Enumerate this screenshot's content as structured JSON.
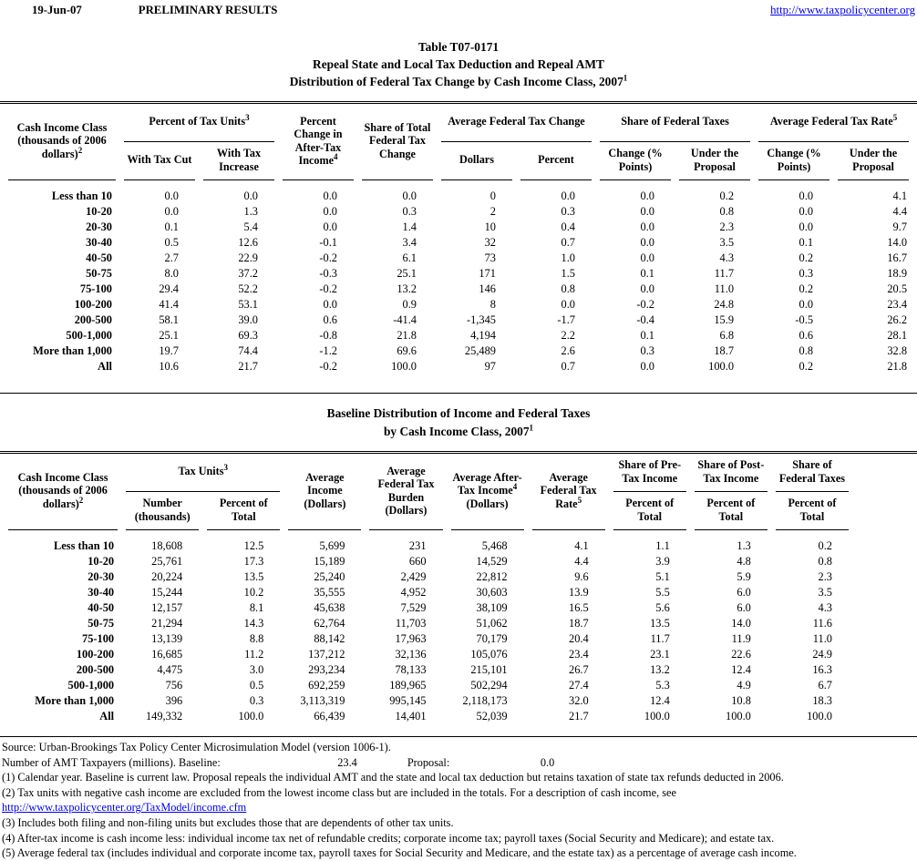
{
  "page_header": {
    "date": "19-Jun-07",
    "status": "PRELIMINARY RESULTS",
    "site_link": "http://www.taxpolicycenter.org"
  },
  "title": {
    "line1": "Table T07-0171",
    "line2": "Repeal State and Local Tax Deduction and Repeal AMT",
    "line3": "Distribution of Federal Tax Change by Cash Income Class, 2007^1"
  },
  "table1": {
    "header": {
      "label_column": "Cash Income Class (thousands of 2006 dollars)^2",
      "groups": [
        {
          "label": "Percent of Tax Units^3",
          "subs": [
            "With Tax Cut",
            "With Tax Increase"
          ]
        },
        {
          "label": "Percent Change in After-Tax Income^4"
        },
        {
          "label": "Share of Total Federal Tax Change"
        },
        {
          "label": "Average Federal Tax Change",
          "subs": [
            "Dollars",
            "Percent"
          ]
        },
        {
          "label": "Share of Federal Taxes",
          "subs": [
            "Change (% Points)",
            "Under the Proposal"
          ]
        },
        {
          "label": "Average Federal Tax Rate^5",
          "subs": [
            "Change (% Points)",
            "Under the Proposal"
          ]
        }
      ]
    },
    "rows": [
      [
        "Less than 10",
        "0.0",
        "0.0",
        "0.0",
        "0.0",
        "0",
        "0.0",
        "0.0",
        "0.2",
        "0.0",
        "4.1"
      ],
      [
        "10-20",
        "0.0",
        "1.3",
        "0.0",
        "0.3",
        "2",
        "0.3",
        "0.0",
        "0.8",
        "0.0",
        "4.4"
      ],
      [
        "20-30",
        "0.1",
        "5.4",
        "0.0",
        "1.4",
        "10",
        "0.4",
        "0.0",
        "2.3",
        "0.0",
        "9.7"
      ],
      [
        "30-40",
        "0.5",
        "12.6",
        "-0.1",
        "3.4",
        "32",
        "0.7",
        "0.0",
        "3.5",
        "0.1",
        "14.0"
      ],
      [
        "40-50",
        "2.7",
        "22.9",
        "-0.2",
        "6.1",
        "73",
        "1.0",
        "0.0",
        "4.3",
        "0.2",
        "16.7"
      ],
      [
        "50-75",
        "8.0",
        "37.2",
        "-0.3",
        "25.1",
        "171",
        "1.5",
        "0.1",
        "11.7",
        "0.3",
        "18.9"
      ],
      [
        "75-100",
        "29.4",
        "52.2",
        "-0.2",
        "13.2",
        "146",
        "0.8",
        "0.0",
        "11.0",
        "0.2",
        "20.5"
      ],
      [
        "100-200",
        "41.4",
        "53.1",
        "0.0",
        "0.9",
        "8",
        "0.0",
        "-0.2",
        "24.8",
        "0.0",
        "23.4"
      ],
      [
        "200-500",
        "58.1",
        "39.0",
        "0.6",
        "-41.4",
        "-1,345",
        "-1.7",
        "-0.4",
        "15.9",
        "-0.5",
        "26.2"
      ],
      [
        "500-1,000",
        "25.1",
        "69.3",
        "-0.8",
        "21.8",
        "4,194",
        "2.2",
        "0.1",
        "6.8",
        "0.6",
        "28.1"
      ],
      [
        "More than 1,000",
        "19.7",
        "74.4",
        "-1.2",
        "69.6",
        "25,489",
        "2.6",
        "0.3",
        "18.7",
        "0.8",
        "32.8"
      ],
      [
        "All",
        "10.6",
        "21.7",
        "-0.2",
        "100.0",
        "97",
        "0.7",
        "0.0",
        "100.0",
        "0.2",
        "21.8"
      ]
    ]
  },
  "title2": {
    "line1": "Baseline Distribution of Income and Federal Taxes",
    "line2": "by Cash Income Class, 2007^1"
  },
  "table2": {
    "header": {
      "label_column": "Cash Income Class (thousands of 2006 dollars)^2",
      "groups": [
        {
          "label": "Tax Units^3",
          "subs": [
            "Number (thousands)",
            "Percent of Total"
          ]
        },
        {
          "label": "Average Income (Dollars)"
        },
        {
          "label": "Average Federal Tax Burden (Dollars)"
        },
        {
          "label": "Average After-Tax Income^4 (Dollars)"
        },
        {
          "label": "Average Federal Tax Rate^5"
        },
        {
          "label": "Share of Pre-Tax Income",
          "subs": [
            "Percent of Total"
          ]
        },
        {
          "label": "Share of Post-Tax Income",
          "subs": [
            "Percent of Total"
          ]
        },
        {
          "label": "Share of Federal Taxes",
          "subs": [
            "Percent of Total"
          ]
        }
      ]
    },
    "rows": [
      [
        "Less than 10",
        "18,608",
        "12.5",
        "5,699",
        "231",
        "5,468",
        "4.1",
        "1.1",
        "1.3",
        "0.2"
      ],
      [
        "10-20",
        "25,761",
        "17.3",
        "15,189",
        "660",
        "14,529",
        "4.4",
        "3.9",
        "4.8",
        "0.8"
      ],
      [
        "20-30",
        "20,224",
        "13.5",
        "25,240",
        "2,429",
        "22,812",
        "9.6",
        "5.1",
        "5.9",
        "2.3"
      ],
      [
        "30-40",
        "15,244",
        "10.2",
        "35,555",
        "4,952",
        "30,603",
        "13.9",
        "5.5",
        "6.0",
        "3.5"
      ],
      [
        "40-50",
        "12,157",
        "8.1",
        "45,638",
        "7,529",
        "38,109",
        "16.5",
        "5.6",
        "6.0",
        "4.3"
      ],
      [
        "50-75",
        "21,294",
        "14.3",
        "62,764",
        "11,703",
        "51,062",
        "18.7",
        "13.5",
        "14.0",
        "11.6"
      ],
      [
        "75-100",
        "13,139",
        "8.8",
        "88,142",
        "17,963",
        "70,179",
        "20.4",
        "11.7",
        "11.9",
        "11.0"
      ],
      [
        "100-200",
        "16,685",
        "11.2",
        "137,212",
        "32,136",
        "105,076",
        "23.4",
        "23.1",
        "22.6",
        "24.9"
      ],
      [
        "200-500",
        "4,475",
        "3.0",
        "293,234",
        "78,133",
        "215,101",
        "26.7",
        "13.2",
        "12.4",
        "16.3"
      ],
      [
        "500-1,000",
        "756",
        "0.5",
        "692,259",
        "189,965",
        "502,294",
        "27.4",
        "5.3",
        "4.9",
        "6.7"
      ],
      [
        "More than 1,000",
        "396",
        "0.3",
        "3,113,319",
        "995,145",
        "2,118,173",
        "32.0",
        "12.4",
        "10.8",
        "18.3"
      ],
      [
        "All",
        "149,332",
        "100.0",
        "66,439",
        "14,401",
        "52,039",
        "21.7",
        "100.0",
        "100.0",
        "100.0"
      ]
    ]
  },
  "footnotes": {
    "source": "Source: Urban-Brookings Tax Policy Center Microsimulation Model (version 1006-1).",
    "amt_label": "Number of AMT Taxpayers (millions).  Baseline:",
    "amt_baseline_value": "23.4",
    "amt_proposal_label": "Proposal:",
    "amt_proposal_value": "0.0",
    "notes": [
      "(1) Calendar year. Baseline is current law. Proposal repeals the individual AMT and the state and local tax deduction but retains taxation of state tax refunds deducted in 2006.",
      "(2) Tax units with negative cash income are excluded from the lowest income class but are included in the totals. For a description of cash income, see",
      "(3) Includes both filing and non-filing units but excludes those that are dependents of other tax units.",
      "(4) After-tax income is cash income less: individual income tax net of refundable credits; corporate income tax; payroll taxes (Social Security and Medicare); and estate tax.",
      "(5) Average federal tax (includes individual and corporate income tax, payroll taxes for Social Security and Medicare, and the estate tax) as a percentage of average cash income."
    ],
    "income_link": "http://www.taxpolicycenter.org/TaxModel/income.cfm"
  }
}
